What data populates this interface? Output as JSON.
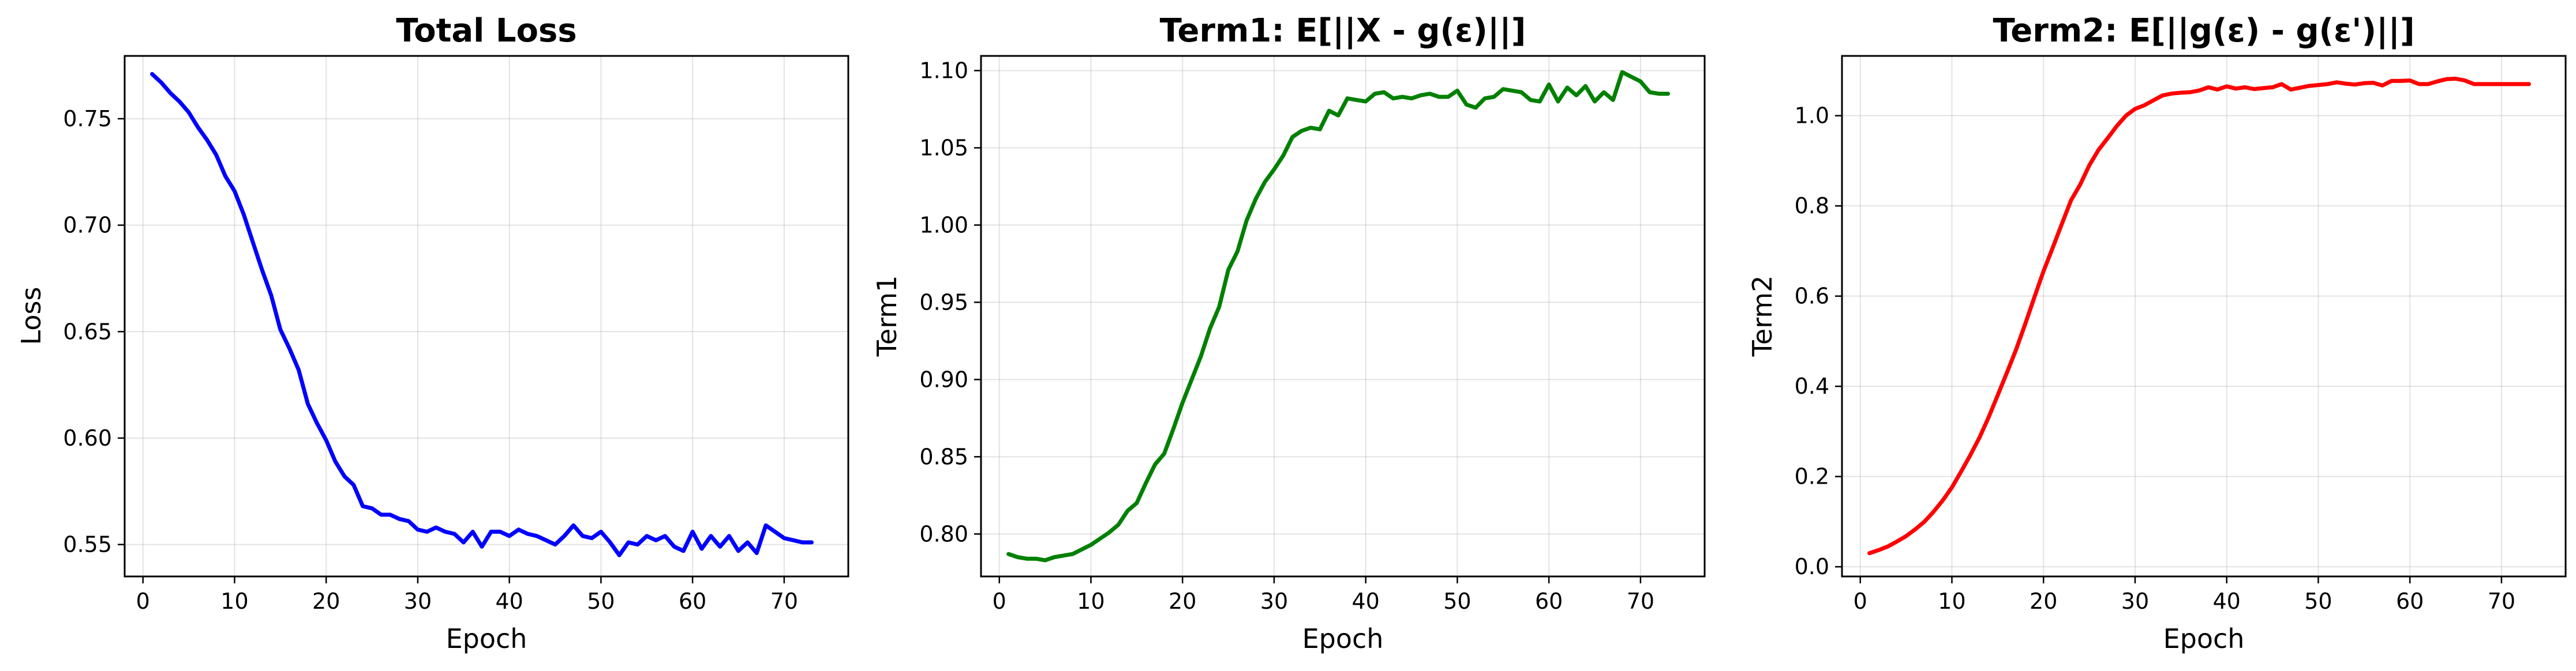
{
  "chart_data": [
    {
      "type": "line",
      "title": "Total Loss",
      "xlabel": "Epoch",
      "ylabel": "Loss",
      "xlim": [
        -2,
        77
      ],
      "ylim": [
        0.535,
        0.7795
      ],
      "grid": true,
      "xticks": [
        0,
        10,
        20,
        30,
        40,
        50,
        60,
        70
      ],
      "yticks": [
        0.55,
        0.6,
        0.65,
        0.7,
        0.75
      ],
      "ytick_labels": [
        "0.55",
        "0.60",
        "0.65",
        "0.70",
        "0.75"
      ],
      "series": [
        {
          "color": "#0000ff",
          "x": [
            1,
            2,
            3,
            4,
            5,
            6,
            7,
            8,
            9,
            10,
            11,
            12,
            13,
            14,
            15,
            16,
            17,
            18,
            19,
            20,
            21,
            22,
            23,
            24,
            25,
            26,
            27,
            28,
            29,
            30,
            31,
            32,
            33,
            34,
            35,
            36,
            37,
            38,
            39,
            40,
            41,
            42,
            43,
            44,
            45,
            46,
            47,
            48,
            49,
            50,
            51,
            52,
            53,
            54,
            55,
            56,
            57,
            58,
            59,
            60,
            61,
            62,
            63,
            64,
            65,
            66,
            67,
            68,
            69,
            70,
            71,
            72,
            73
          ],
          "y": [
            0.771,
            0.767,
            0.762,
            0.758,
            0.753,
            0.746,
            0.74,
            0.733,
            0.723,
            0.716,
            0.705,
            0.692,
            0.679,
            0.667,
            0.651,
            0.642,
            0.632,
            0.616,
            0.607,
            0.599,
            0.589,
            0.582,
            0.578,
            0.568,
            0.567,
            0.564,
            0.564,
            0.562,
            0.561,
            0.557,
            0.556,
            0.558,
            0.556,
            0.555,
            0.551,
            0.556,
            0.549,
            0.556,
            0.556,
            0.554,
            0.557,
            0.555,
            0.554,
            0.552,
            0.55,
            0.554,
            0.559,
            0.554,
            0.553,
            0.556,
            0.551,
            0.545,
            0.551,
            0.55,
            0.554,
            0.552,
            0.554,
            0.549,
            0.547,
            0.556,
            0.548,
            0.554,
            0.549,
            0.554,
            0.547,
            0.551,
            0.546,
            0.559,
            0.556,
            0.553,
            0.552,
            0.551,
            0.551
          ]
        }
      ]
    },
    {
      "type": "line",
      "title": "Term1: E[||X - g(ε)||]",
      "xlabel": "Epoch",
      "ylabel": "Term1",
      "xlim": [
        -2,
        77
      ],
      "ylim": [
        0.7725,
        1.1095
      ],
      "grid": true,
      "xticks": [
        0,
        10,
        20,
        30,
        40,
        50,
        60,
        70
      ],
      "yticks": [
        0.8,
        0.85,
        0.9,
        0.95,
        1.0,
        1.05,
        1.1
      ],
      "ytick_labels": [
        "0.80",
        "0.85",
        "0.90",
        "0.95",
        "1.00",
        "1.05",
        "1.10"
      ],
      "series": [
        {
          "color": "#008000",
          "x": [
            1,
            2,
            3,
            4,
            5,
            6,
            7,
            8,
            9,
            10,
            11,
            12,
            13,
            14,
            15,
            16,
            17,
            18,
            19,
            20,
            21,
            22,
            23,
            24,
            25,
            26,
            27,
            28,
            29,
            30,
            31,
            32,
            33,
            34,
            35,
            36,
            37,
            38,
            39,
            40,
            41,
            42,
            43,
            44,
            45,
            46,
            47,
            48,
            49,
            50,
            51,
            52,
            53,
            54,
            55,
            56,
            57,
            58,
            59,
            60,
            61,
            62,
            63,
            64,
            65,
            66,
            67,
            68,
            69,
            70,
            71,
            72,
            73
          ],
          "y": [
            0.787,
            0.785,
            0.784,
            0.784,
            0.783,
            0.785,
            0.786,
            0.787,
            0.79,
            0.793,
            0.797,
            0.801,
            0.806,
            0.815,
            0.82,
            0.833,
            0.845,
            0.852,
            0.868,
            0.885,
            0.9,
            0.915,
            0.933,
            0.947,
            0.971,
            0.983,
            1.003,
            1.017,
            1.028,
            1.036,
            1.045,
            1.057,
            1.061,
            1.063,
            1.062,
            1.074,
            1.071,
            1.082,
            1.081,
            1.08,
            1.085,
            1.086,
            1.082,
            1.083,
            1.082,
            1.084,
            1.085,
            1.083,
            1.083,
            1.087,
            1.078,
            1.076,
            1.082,
            1.083,
            1.088,
            1.087,
            1.086,
            1.081,
            1.08,
            1.091,
            1.08,
            1.089,
            1.084,
            1.09,
            1.08,
            1.086,
            1.081,
            1.099,
            1.096,
            1.093,
            1.086,
            1.085,
            1.085
          ]
        }
      ]
    },
    {
      "type": "line",
      "title": "Term2: E[||g(ε) - g(ε')||]",
      "xlabel": "Epoch",
      "ylabel": "Term2",
      "xlim": [
        -2,
        77
      ],
      "ylim": [
        -0.0215,
        1.1325
      ],
      "grid": true,
      "xticks": [
        0,
        10,
        20,
        30,
        40,
        50,
        60,
        70
      ],
      "yticks": [
        0.0,
        0.2,
        0.4,
        0.6,
        0.8,
        1.0
      ],
      "ytick_labels": [
        "0.0",
        "0.2",
        "0.4",
        "0.6",
        "0.8",
        "1.0"
      ],
      "series": [
        {
          "color": "#ff0000",
          "x": [
            1,
            2,
            3,
            4,
            5,
            6,
            7,
            8,
            9,
            10,
            11,
            12,
            13,
            14,
            15,
            16,
            17,
            18,
            19,
            20,
            21,
            22,
            23,
            24,
            25,
            26,
            27,
            28,
            29,
            30,
            31,
            32,
            33,
            34,
            35,
            36,
            37,
            38,
            39,
            40,
            41,
            42,
            43,
            44,
            45,
            46,
            47,
            48,
            49,
            50,
            51,
            52,
            53,
            54,
            55,
            56,
            57,
            58,
            59,
            60,
            61,
            62,
            63,
            64,
            65,
            66,
            67,
            68,
            69,
            70,
            71,
            72,
            73
          ],
          "y": [
            0.03,
            0.037,
            0.045,
            0.056,
            0.068,
            0.083,
            0.1,
            0.122,
            0.147,
            0.176,
            0.211,
            0.247,
            0.286,
            0.331,
            0.38,
            0.43,
            0.481,
            0.538,
            0.597,
            0.655,
            0.707,
            0.76,
            0.812,
            0.847,
            0.89,
            0.924,
            0.95,
            0.977,
            1.0,
            1.015,
            1.023,
            1.034,
            1.045,
            1.049,
            1.051,
            1.052,
            1.056,
            1.063,
            1.058,
            1.065,
            1.06,
            1.063,
            1.059,
            1.061,
            1.063,
            1.07,
            1.058,
            1.062,
            1.066,
            1.068,
            1.07,
            1.074,
            1.071,
            1.069,
            1.072,
            1.073,
            1.067,
            1.077,
            1.077,
            1.078,
            1.07,
            1.07,
            1.076,
            1.081,
            1.082,
            1.078,
            1.07,
            1.07,
            1.07,
            1.07,
            1.07,
            1.07,
            1.07
          ]
        }
      ]
    }
  ]
}
